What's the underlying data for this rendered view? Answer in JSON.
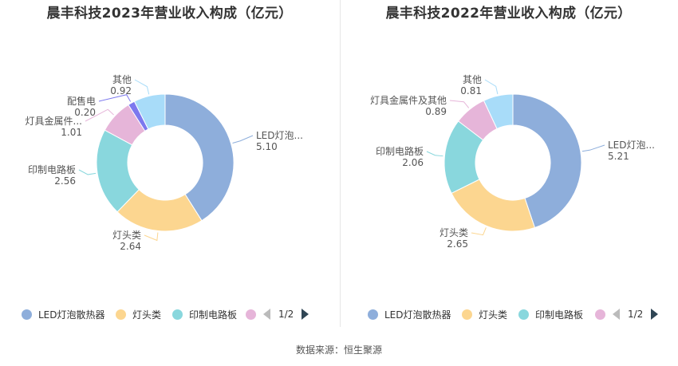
{
  "chart_data": [
    {
      "type": "pie",
      "title": "晨丰科技2023年营业收入构成（亿元）",
      "slices": [
        {
          "label": "LED灯泡...",
          "legend": "LED灯泡散热器",
          "value": 5.1,
          "value_text": "5.10",
          "color": "#8eaedb"
        },
        {
          "label": "灯头类",
          "legend": "灯头类",
          "value": 2.64,
          "value_text": "2.64",
          "color": "#fcd690"
        },
        {
          "label": "印制电路板",
          "legend": "印制电路板",
          "value": 2.56,
          "value_text": "2.56",
          "color": "#89d7dd"
        },
        {
          "label": "灯具金属件...",
          "legend": "",
          "value": 1.01,
          "value_text": "1.01",
          "color": "#e6b5d9"
        },
        {
          "label": "配售电",
          "legend": "",
          "value": 0.2,
          "value_text": "0.20",
          "color": "#7c78ee"
        },
        {
          "label": "其他",
          "legend": "",
          "value": 0.92,
          "value_text": "0.92",
          "color": "#a8dcf9"
        }
      ],
      "pager": "1/2"
    },
    {
      "type": "pie",
      "title": "晨丰科技2022年营业收入构成（亿元）",
      "slices": [
        {
          "label": "LED灯泡...",
          "legend": "LED灯泡散热器",
          "value": 5.21,
          "value_text": "5.21",
          "color": "#8eaedb"
        },
        {
          "label": "灯头类",
          "legend": "灯头类",
          "value": 2.65,
          "value_text": "2.65",
          "color": "#fcd690"
        },
        {
          "label": "印制电路板",
          "legend": "印制电路板",
          "value": 2.06,
          "value_text": "2.06",
          "color": "#89d7dd"
        },
        {
          "label": "灯具金属件及其他",
          "legend": "",
          "value": 0.89,
          "value_text": "0.89",
          "color": "#e6b5d9"
        },
        {
          "label": "其他",
          "legend": "",
          "value": 0.81,
          "value_text": "0.81",
          "color": "#a8dcf9"
        }
      ],
      "pager": "1/2"
    }
  ],
  "footer": {
    "source": "数据来源：恒生聚源"
  }
}
